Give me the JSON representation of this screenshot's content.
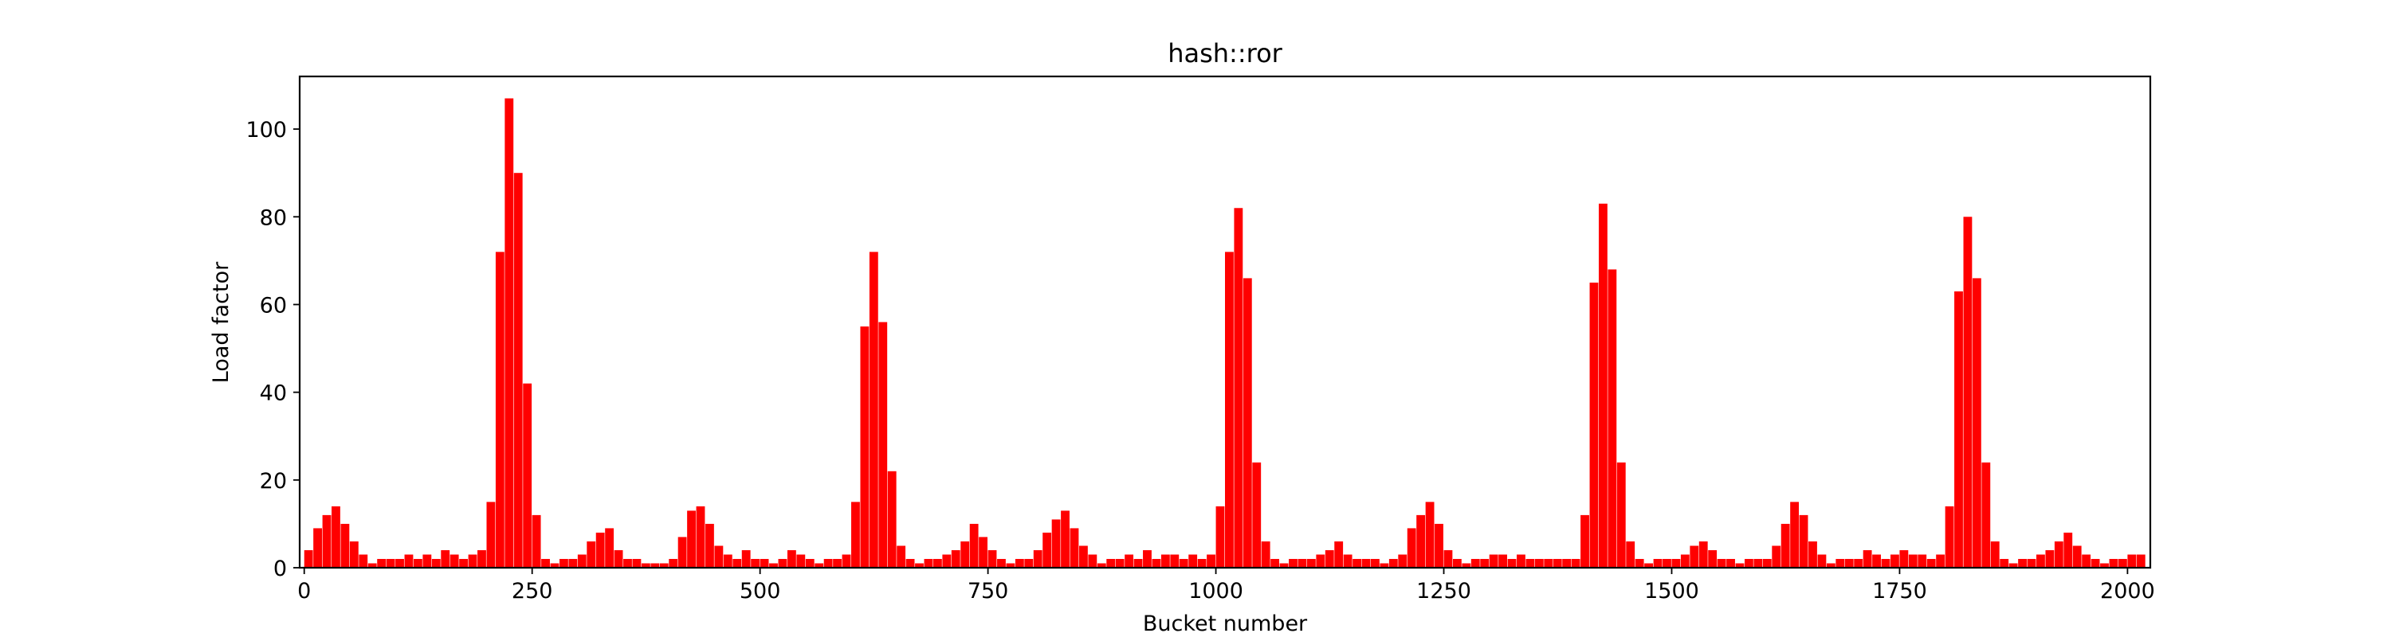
{
  "chart_data": {
    "type": "bar",
    "title": "hash::ror",
    "xlabel": "Bucket number",
    "ylabel": "Load factor",
    "xlim": [
      -5,
      2025
    ],
    "ylim": [
      0,
      112
    ],
    "x_ticks": [
      {
        "value": 0,
        "label": "0"
      },
      {
        "value": 250,
        "label": "250"
      },
      {
        "value": 500,
        "label": "500"
      },
      {
        "value": 750,
        "label": "750"
      },
      {
        "value": 1000,
        "label": "1000"
      },
      {
        "value": 1250,
        "label": "1250"
      },
      {
        "value": 1500,
        "label": "1500"
      },
      {
        "value": 1750,
        "label": "1750"
      },
      {
        "value": 2000,
        "label": "2000"
      }
    ],
    "y_ticks": [
      {
        "value": 0,
        "label": "0"
      },
      {
        "value": 20,
        "label": "20"
      },
      {
        "value": 40,
        "label": "40"
      },
      {
        "value": 60,
        "label": "60"
      },
      {
        "value": 80,
        "label": "80"
      },
      {
        "value": 100,
        "label": "100"
      }
    ],
    "grid": false,
    "bar_color": "#ff0000",
    "bin_width": 10,
    "x": [
      0,
      10,
      20,
      30,
      40,
      50,
      60,
      70,
      80,
      90,
      100,
      110,
      120,
      130,
      140,
      150,
      160,
      170,
      180,
      190,
      200,
      210,
      220,
      230,
      240,
      250,
      260,
      270,
      280,
      290,
      300,
      310,
      320,
      330,
      340,
      350,
      360,
      370,
      380,
      390,
      400,
      410,
      420,
      430,
      440,
      450,
      460,
      470,
      480,
      490,
      500,
      510,
      520,
      530,
      540,
      550,
      560,
      570,
      580,
      590,
      600,
      610,
      620,
      630,
      640,
      650,
      660,
      670,
      680,
      690,
      700,
      710,
      720,
      730,
      740,
      750,
      760,
      770,
      780,
      790,
      800,
      810,
      820,
      830,
      840,
      850,
      860,
      870,
      880,
      890,
      900,
      910,
      920,
      930,
      940,
      950,
      960,
      970,
      980,
      990,
      1000,
      1010,
      1020,
      1030,
      1040,
      1050,
      1060,
      1070,
      1080,
      1090,
      1100,
      1110,
      1120,
      1130,
      1140,
      1150,
      1160,
      1170,
      1180,
      1190,
      1200,
      1210,
      1220,
      1230,
      1240,
      1250,
      1260,
      1270,
      1280,
      1290,
      1300,
      1310,
      1320,
      1330,
      1340,
      1350,
      1360,
      1370,
      1380,
      1390,
      1400,
      1410,
      1420,
      1430,
      1440,
      1450,
      1460,
      1470,
      1480,
      1490,
      1500,
      1510,
      1520,
      1530,
      1540,
      1550,
      1560,
      1570,
      1580,
      1590,
      1600,
      1610,
      1620,
      1630,
      1640,
      1650,
      1660,
      1670,
      1680,
      1690,
      1700,
      1710,
      1720,
      1730,
      1740,
      1750,
      1760,
      1770,
      1780,
      1790,
      1800,
      1810,
      1820,
      1830,
      1840,
      1850,
      1860,
      1870,
      1880,
      1890,
      1900,
      1910,
      1920,
      1930,
      1940,
      1950,
      1960,
      1970,
      1980,
      1990,
      2000,
      2010
    ],
    "values": [
      4,
      9,
      12,
      14,
      10,
      6,
      3,
      1,
      2,
      2,
      2,
      3,
      2,
      3,
      2,
      4,
      3,
      2,
      3,
      4,
      15,
      72,
      107,
      90,
      42,
      12,
      2,
      1,
      2,
      2,
      3,
      6,
      8,
      9,
      4,
      2,
      2,
      1,
      1,
      1,
      2,
      7,
      13,
      14,
      10,
      5,
      3,
      2,
      4,
      2,
      2,
      1,
      2,
      4,
      3,
      2,
      1,
      2,
      2,
      3,
      15,
      55,
      72,
      56,
      22,
      5,
      2,
      1,
      2,
      2,
      3,
      4,
      6,
      10,
      7,
      4,
      2,
      1,
      2,
      2,
      4,
      8,
      11,
      13,
      9,
      5,
      3,
      1,
      2,
      2,
      3,
      2,
      4,
      2,
      3,
      3,
      2,
      3,
      2,
      3,
      14,
      72,
      82,
      66,
      24,
      6,
      2,
      1,
      2,
      2,
      2,
      3,
      4,
      6,
      3,
      2,
      2,
      2,
      1,
      2,
      3,
      9,
      12,
      15,
      10,
      4,
      2,
      1,
      2,
      2,
      3,
      3,
      2,
      3,
      2,
      2,
      2,
      2,
      2,
      2,
      12,
      65,
      83,
      68,
      24,
      6,
      2,
      1,
      2,
      2,
      2,
      3,
      5,
      6,
      4,
      2,
      2,
      1,
      2,
      2,
      2,
      5,
      10,
      15,
      12,
      6,
      3,
      1,
      2,
      2,
      2,
      4,
      3,
      2,
      3,
      4,
      3,
      3,
      2,
      3,
      14,
      63,
      80,
      66,
      24,
      6,
      2,
      1,
      2,
      2,
      3,
      4,
      6,
      8,
      5,
      3,
      2,
      1,
      2,
      2,
      3,
      3
    ]
  }
}
